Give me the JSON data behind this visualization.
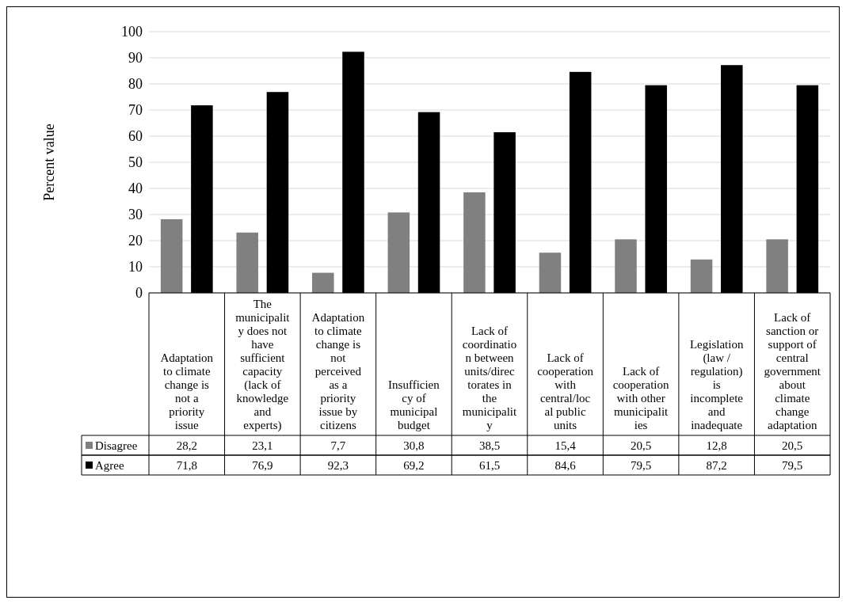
{
  "chart_data": {
    "type": "bar",
    "ylabel": "Percent value",
    "categories": [
      "Adaptation to climate change is not a priority issue",
      "The municipality does not have sufficient capacity (lack of knowledge and experts)",
      "Adaptation to climate change is not perceived as a priority issue by citizens",
      "Insufficiency of municipal budget",
      "Lack of coordination between units/directorates in the municipality",
      "Lack of cooperation with central/local public units",
      "Lack of cooperation with other municipalities",
      "Legislation (law / regulation) is incomplete and inadequate",
      "Lack of sanction or support of central government about climate change adaptation"
    ],
    "series": [
      {
        "name": "Disagree",
        "color": "#808080",
        "values": [
          28.2,
          23.1,
          7.7,
          30.8,
          38.5,
          15.4,
          20.5,
          12.8,
          20.5
        ],
        "value_labels": [
          "28,2",
          "23,1",
          "7,7",
          "30,8",
          "38,5",
          "15,4",
          "20,5",
          "12,8",
          "20,5"
        ]
      },
      {
        "name": "Agree",
        "color": "#000000",
        "values": [
          71.8,
          76.9,
          92.3,
          69.2,
          61.5,
          84.6,
          79.5,
          87.2,
          79.5
        ],
        "value_labels": [
          "71,8",
          "76,9",
          "92,3",
          "69,2",
          "61,5",
          "84,6",
          "79,5",
          "87,2",
          "79,5"
        ]
      }
    ],
    "ylim": [
      0,
      100
    ],
    "yticks": [
      0,
      10,
      20,
      30,
      40,
      50,
      60,
      70,
      80,
      90,
      100
    ],
    "grid": "y",
    "legend": "bottom"
  }
}
